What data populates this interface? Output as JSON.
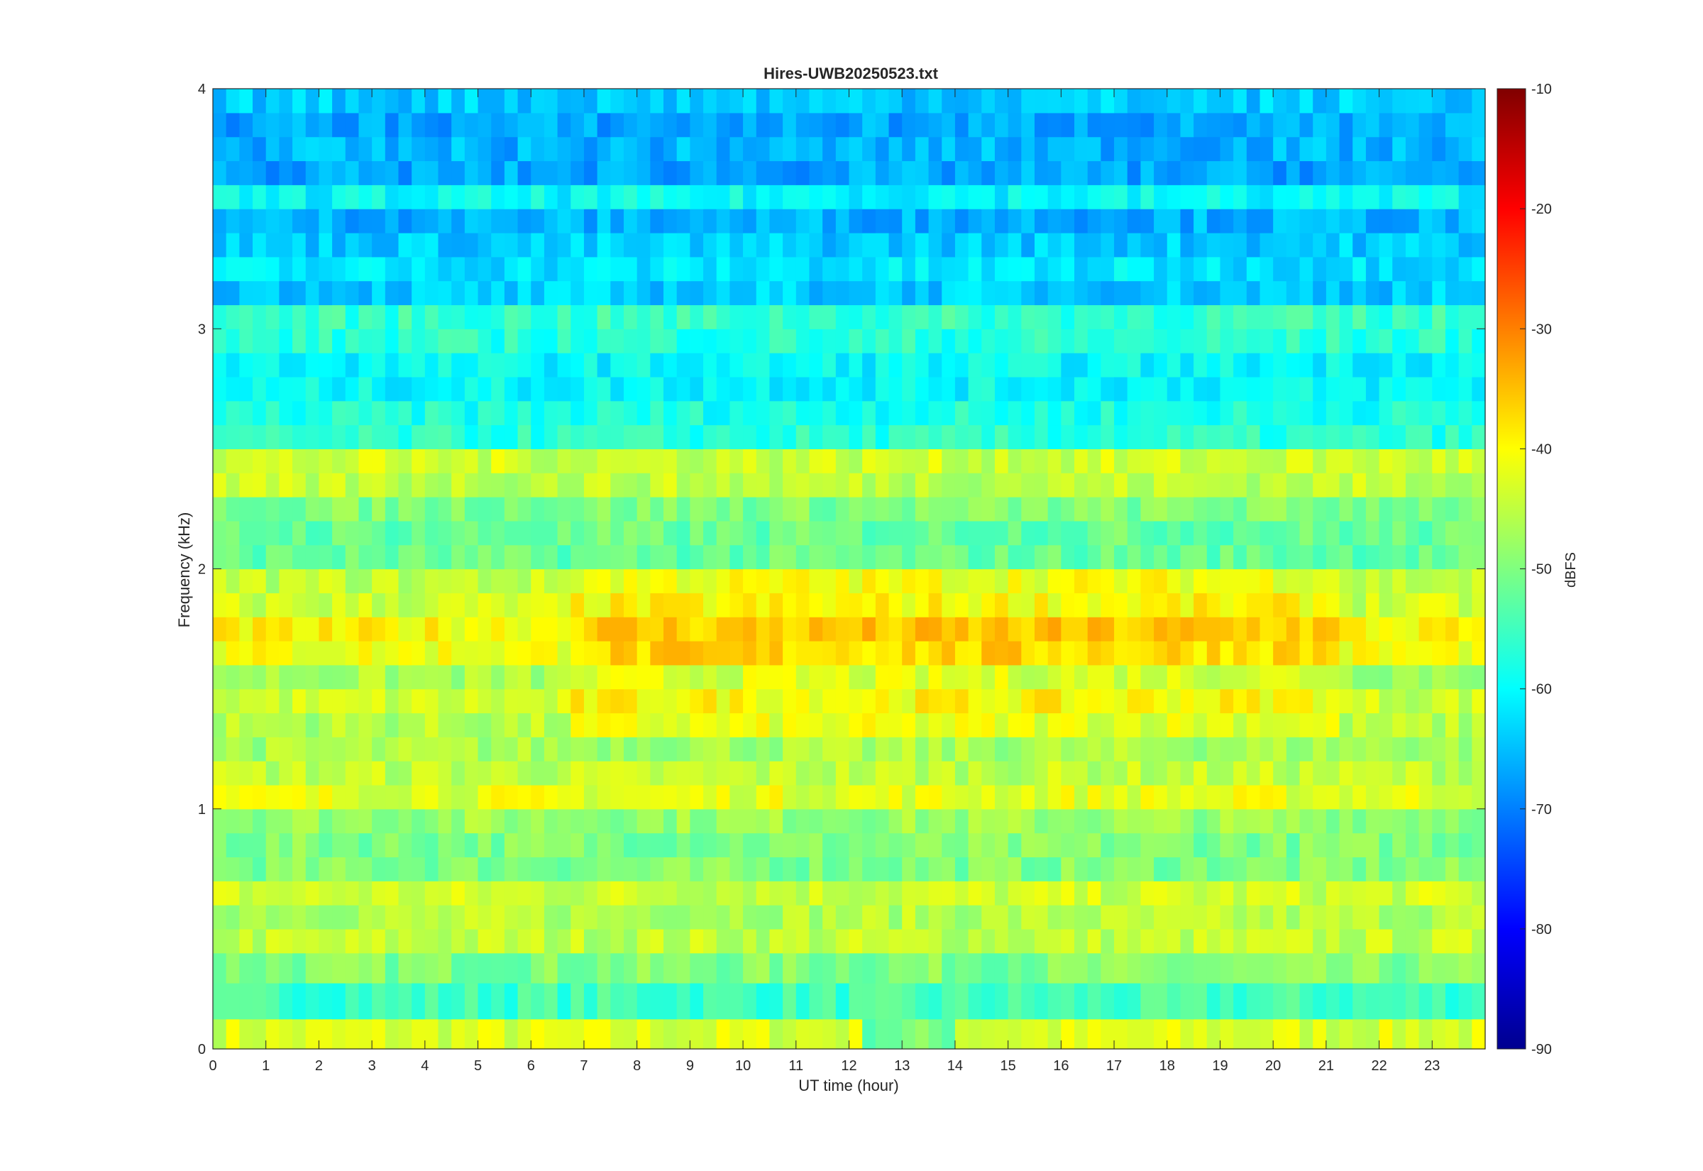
{
  "chart_data": {
    "type": "heatmap",
    "title": "Hires-UWB20250523.txt",
    "xlabel": "UT time (hour)",
    "ylabel": "Frequency (kHz)",
    "xlim": [
      0,
      24
    ],
    "ylim": [
      0,
      4
    ],
    "x_ticks": [
      0,
      1,
      2,
      3,
      4,
      5,
      6,
      7,
      8,
      9,
      10,
      11,
      12,
      13,
      14,
      15,
      16,
      17,
      18,
      19,
      20,
      21,
      22,
      23
    ],
    "y_ticks": [
      0,
      1,
      2,
      3,
      4
    ],
    "colorbar": {
      "label": "dBFS",
      "range": [
        -90,
        -10
      ],
      "ticks": [
        -90,
        -80,
        -70,
        -60,
        -50,
        -40,
        -30,
        -20,
        -10
      ],
      "colormap": "jet"
    },
    "colors": {
      "colormap_stops": [
        "#00008f",
        "#0000ff",
        "#00ffff",
        "#ffff00",
        "#ff0000",
        "#800000"
      ],
      "axis": "#262626"
    },
    "frequency_bands_kHz": [
      0.05,
      0.2,
      0.35,
      0.45,
      0.55,
      0.65,
      0.75,
      0.85,
      0.95,
      1.05,
      1.15,
      1.25,
      1.35,
      1.45,
      1.55,
      1.65,
      1.75,
      1.85,
      1.95,
      2.05,
      2.15,
      2.25,
      2.35,
      2.45,
      2.55,
      2.65,
      2.75,
      2.85,
      2.95,
      3.05,
      3.15,
      3.25,
      3.35,
      3.45,
      3.55,
      3.65,
      3.75,
      3.85,
      3.95
    ],
    "frequency_bands_dBFS": [
      -43,
      -55,
      -50,
      -45,
      -46,
      -44,
      -50,
      -50,
      -48,
      -42,
      -45,
      -47,
      -46,
      -44,
      -47,
      -41,
      -40,
      -44,
      -45,
      -52,
      -52,
      -50,
      -45,
      -44,
      -57,
      -58,
      -60,
      -60,
      -57,
      -56,
      -64,
      -62,
      -64,
      -66,
      -60,
      -67,
      -66,
      -67,
      -64
    ]
  }
}
